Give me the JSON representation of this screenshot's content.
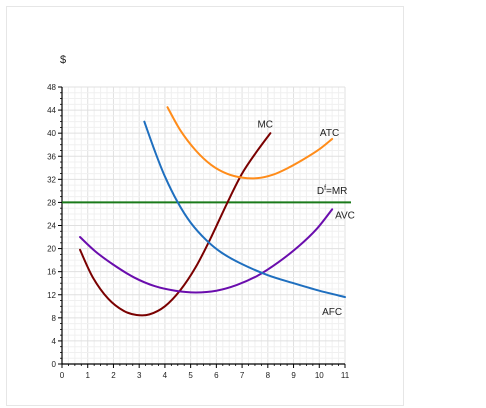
{
  "chart_data": {
    "type": "line",
    "title": "",
    "xlabel": "",
    "ylabel": "$",
    "xlim": [
      0,
      11
    ],
    "ylim": [
      0,
      48
    ],
    "xticks": [
      "0",
      "1",
      "2",
      "3",
      "4",
      "5",
      "6",
      "7",
      "8",
      "9",
      "10",
      "11"
    ],
    "yticks": [
      "0",
      "4",
      "8",
      "12",
      "16",
      "20",
      "24",
      "28",
      "32",
      "36",
      "40",
      "44",
      "48"
    ],
    "grid": true,
    "series": [
      {
        "name": "MC",
        "color": "#7a0000",
        "label_pos": [
          7.9,
          41
        ],
        "points": [
          [
            0.7,
            19.8
          ],
          [
            1.2,
            15.0
          ],
          [
            1.8,
            11.3
          ],
          [
            2.4,
            9.2
          ],
          [
            2.9,
            8.5
          ],
          [
            3.4,
            8.6
          ],
          [
            4.0,
            10.0
          ],
          [
            4.6,
            12.8
          ],
          [
            5.2,
            16.8
          ],
          [
            5.8,
            22.0
          ],
          [
            6.4,
            27.7
          ],
          [
            7.0,
            33.0
          ],
          [
            7.6,
            37.0
          ],
          [
            8.1,
            40.0
          ]
        ]
      },
      {
        "name": "ATC",
        "color": "#ff8c1a",
        "label_pos": [
          10.4,
          39.5
        ],
        "points": [
          [
            4.1,
            44.5
          ],
          [
            4.6,
            40.5
          ],
          [
            5.2,
            37.0
          ],
          [
            5.8,
            34.5
          ],
          [
            6.4,
            33.0
          ],
          [
            7.0,
            32.3
          ],
          [
            7.6,
            32.2
          ],
          [
            8.2,
            32.8
          ],
          [
            8.8,
            34.0
          ],
          [
            9.4,
            35.5
          ],
          [
            10.0,
            37.2
          ],
          [
            10.5,
            39.0
          ]
        ]
      },
      {
        "name": "AVC",
        "color": "#6a0dad",
        "label_pos": [
          11.0,
          25.2
        ],
        "points": [
          [
            0.7,
            22.0
          ],
          [
            1.3,
            19.5
          ],
          [
            2.0,
            17.2
          ],
          [
            2.8,
            15.0
          ],
          [
            3.6,
            13.5
          ],
          [
            4.4,
            12.7
          ],
          [
            5.2,
            12.4
          ],
          [
            6.0,
            12.7
          ],
          [
            6.8,
            13.7
          ],
          [
            7.6,
            15.3
          ],
          [
            8.4,
            17.6
          ],
          [
            9.2,
            20.4
          ],
          [
            9.9,
            23.4
          ],
          [
            10.5,
            26.8
          ]
        ]
      },
      {
        "name": "AFC",
        "color": "#1f6fbf",
        "label_pos": [
          10.5,
          8.5
        ],
        "points": [
          [
            3.2,
            42.0
          ],
          [
            3.6,
            37.0
          ],
          [
            4.0,
            32.5
          ],
          [
            4.5,
            28.0
          ],
          [
            5.0,
            24.5
          ],
          [
            5.6,
            21.5
          ],
          [
            6.2,
            19.3
          ],
          [
            7.0,
            17.3
          ],
          [
            8.0,
            15.4
          ],
          [
            9.0,
            14.0
          ],
          [
            10.0,
            12.7
          ],
          [
            11.0,
            11.6
          ]
        ]
      }
    ],
    "hlines": [
      {
        "name": "Df=MR",
        "label_main": "D",
        "label_sup": "f",
        "label_rest": "=MR",
        "value": 28,
        "color": "#1a7a1a",
        "label_pos": [
          10.5,
          29.5
        ]
      }
    ]
  }
}
